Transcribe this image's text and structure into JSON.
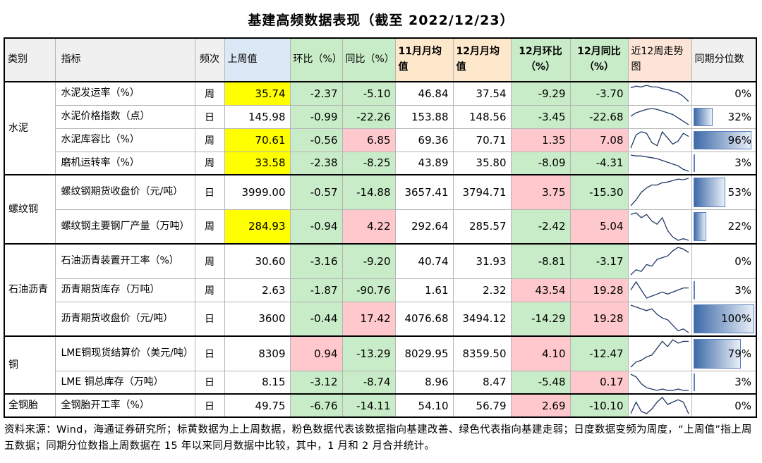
{
  "title": "基建高频数据表现（截至 2022/12/23）",
  "headers": {
    "category": "类别",
    "indicator": "指标",
    "frequency": "频次",
    "last_week": "上周值",
    "wow": "环比（%）",
    "yoy": "同比（%）",
    "nov_avg": "11月月均值",
    "dec_avg": "12月月均值",
    "dec_mom": "12月环比（%）",
    "dec_yoy": "12月同比（%）",
    "trend": "近12周走势图",
    "percentile": "同期分位数"
  },
  "categories": {
    "cement": "水泥",
    "rebar": "螺纹钢",
    "asphalt": "石油沥青",
    "copper": "铜",
    "tire": "全钢胎"
  },
  "rows": [
    {
      "indicator": "水泥发运率（%）",
      "freq": "周",
      "last": "35.74",
      "wow": "-2.37",
      "yoy": "-5.10",
      "nov": "46.84",
      "dec": "37.54",
      "mom12": "-9.29",
      "yoy12": "-3.70",
      "pct": "0%",
      "pctv": 0,
      "trend": [
        30,
        32,
        31,
        33,
        31,
        31,
        29,
        28,
        26,
        24,
        20,
        14
      ]
    },
    {
      "indicator": "水泥价格指数（点）",
      "freq": "日",
      "last": "145.98",
      "wow": "-0.99",
      "yoy": "-22.26",
      "nov": "153.88",
      "dec": "148.56",
      "mom12": "-3.45",
      "yoy12": "-22.68",
      "pct": "32%",
      "pctv": 32,
      "trend": [
        18,
        22,
        24,
        26,
        27,
        26,
        24,
        22,
        20,
        16,
        12,
        8
      ]
    },
    {
      "indicator": "水泥库容比（%）",
      "freq": "周",
      "last": "70.61",
      "wow": "-0.56",
      "yoy": "6.85",
      "nov": "69.36",
      "dec": "70.71",
      "mom12": "1.35",
      "yoy12": "7.08",
      "pct": "96%",
      "pctv": 96,
      "trend": [
        5,
        22,
        26,
        24,
        12,
        8,
        26,
        18,
        10,
        14,
        24,
        20
      ]
    },
    {
      "indicator": "磨机运转率（%）",
      "freq": "周",
      "last": "33.58",
      "wow": "-2.38",
      "yoy": "-8.25",
      "nov": "43.89",
      "dec": "35.80",
      "mom12": "-8.09",
      "yoy12": "-4.31",
      "pct": "3%",
      "pctv": 3,
      "trend": [
        28,
        27,
        27,
        26,
        25,
        24,
        22,
        20,
        18,
        16,
        12,
        10
      ]
    },
    {
      "indicator": "螺纹钢期货收盘价（元/吨）",
      "freq": "日",
      "last": "3999.00",
      "wow": "-0.57",
      "yoy": "-14.88",
      "nov": "3657.41",
      "dec": "3794.71",
      "mom12": "3.75",
      "yoy12": "-15.30",
      "pct": "53%",
      "pctv": 53,
      "trend": [
        6,
        14,
        24,
        30,
        34,
        34,
        37,
        38,
        40,
        42,
        41,
        43
      ]
    },
    {
      "indicator": "螺纹钢主要钢厂产量（万吨）",
      "freq": "周",
      "last": "284.93",
      "wow": "-0.94",
      "yoy": "4.22",
      "nov": "292.64",
      "dec": "285.57",
      "mom12": "-2.42",
      "yoy12": "5.04",
      "pct": "22%",
      "pctv": 22,
      "trend": [
        38,
        40,
        34,
        38,
        30,
        26,
        34,
        18,
        10,
        6,
        8,
        6
      ]
    },
    {
      "indicator": "石油沥青装置开工率（%）",
      "freq": "周",
      "last": "30.60",
      "wow": "-3.16",
      "yoy": "-9.20",
      "nov": "40.74",
      "dec": "31.93",
      "mom12": "-8.81",
      "yoy12": "-3.17",
      "pct": "0%",
      "pctv": 0,
      "trend": [
        8,
        14,
        12,
        20,
        18,
        26,
        28,
        30,
        36,
        40,
        38,
        34
      ]
    },
    {
      "indicator": "沥青期货库存（万吨）",
      "freq": "周",
      "last": "2.63",
      "wow": "-1.87",
      "yoy": "-90.76",
      "nov": "1.61",
      "dec": "2.32",
      "mom12": "43.54",
      "yoy12": "19.28",
      "pct": "3%",
      "pctv": 3,
      "trend": [
        22,
        30,
        22,
        14,
        16,
        18,
        20,
        18,
        20,
        22,
        24,
        24
      ]
    },
    {
      "indicator": "沥青期货收盘价（元/吨）",
      "freq": "日",
      "last": "3600",
      "wow": "-0.44",
      "yoy": "17.42",
      "nov": "4076.68",
      "dec": "3494.12",
      "mom12": "-14.29",
      "yoy12": "19.28",
      "pct": "100%",
      "pctv": 100,
      "trend": [
        40,
        38,
        36,
        34,
        36,
        30,
        26,
        24,
        18,
        12,
        14,
        10
      ]
    },
    {
      "indicator": "LME铜现货结算价（美元/吨）",
      "freq": "日",
      "last": "8309",
      "wow": "0.94",
      "yoy": "-13.29",
      "nov": "8029.95",
      "dec": "8359.50",
      "mom12": "4.10",
      "yoy12": "-12.47",
      "pct": "79%",
      "pctv": 79,
      "trend": [
        6,
        12,
        14,
        18,
        20,
        28,
        36,
        30,
        38,
        34,
        36,
        36
      ]
    },
    {
      "indicator": "LME 铜总库存（万吨）",
      "freq": "日",
      "last": "8.15",
      "wow": "-3.12",
      "yoy": "-8.74",
      "nov": "8.96",
      "dec": "8.47",
      "mom12": "-5.48",
      "yoy12": "0.17",
      "pct": "3%",
      "pctv": 3,
      "trend": [
        34,
        30,
        20,
        14,
        12,
        10,
        12,
        10,
        10,
        12,
        10,
        10
      ]
    },
    {
      "indicator": "全钢胎开工率（%）",
      "freq": "日",
      "last": "49.75",
      "wow": "-6.76",
      "yoy": "-14.11",
      "nov": "54.10",
      "dec": "56.79",
      "mom12": "2.69",
      "yoy12": "-10.10",
      "pct": "0%",
      "pctv": 0,
      "trend": [
        12,
        22,
        14,
        12,
        16,
        22,
        26,
        20,
        22,
        24,
        22,
        12
      ]
    }
  ],
  "note": "资料来源：Wind，海通证券研究所；标黄数据为上上周数据，粉色数据代表该数据指向基建改善、绿色代表指向基建走弱；日度数据变频为周度，“上周值”指上周五数据；同期分位数指上周数据在 15 年以来同月数据中比较，其中，1 月和 2 月合并统计。",
  "colors": {
    "highlight": "#ffff00",
    "pink": "#ffc8cc",
    "green": "#c9ecc8",
    "bar": "#3d6aa8"
  }
}
